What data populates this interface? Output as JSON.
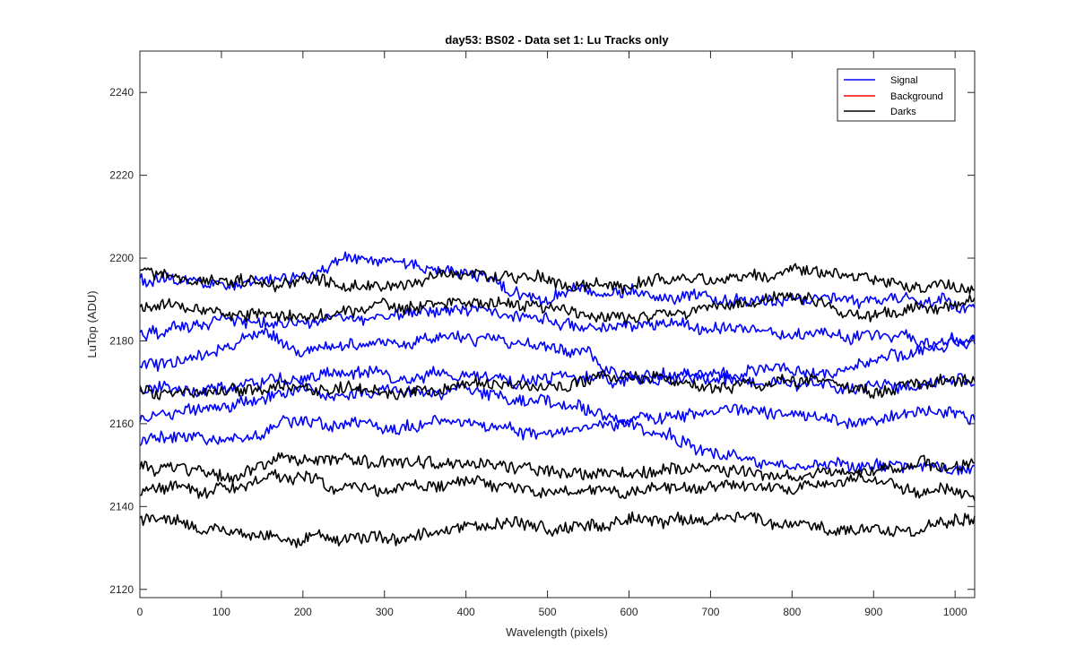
{
  "chart_data": {
    "type": "line",
    "title": "day53: BS02 - Data set 1: Lu Tracks only",
    "xlabel": "Wavelength (pixels)",
    "ylabel": "LuTop (ADU)",
    "xlim": [
      0,
      1024
    ],
    "ylim": [
      2118,
      2250
    ],
    "xticks": [
      0,
      100,
      200,
      300,
      400,
      500,
      600,
      700,
      800,
      900,
      1000
    ],
    "yticks": [
      2120,
      2140,
      2160,
      2180,
      2200,
      2220,
      2240
    ],
    "grid": false,
    "legend": {
      "placement": "top-right",
      "entries": [
        {
          "label": "Signal",
          "color": "#0000ff"
        },
        {
          "label": "Background",
          "color": "#ff0000"
        },
        {
          "label": "Darks",
          "color": "#000000"
        }
      ]
    },
    "series": [
      {
        "name": "Signal",
        "color": "#0000ff",
        "x": [
          0,
          100,
          200,
          250,
          300,
          400,
          500,
          600,
          700,
          800,
          900,
          1024
        ],
        "values": [
          2195,
          2193,
          2196,
          2200,
          2199,
          2196,
          2190,
          2193,
          2192,
          2191,
          2189,
          2188
        ]
      },
      {
        "name": "Signal",
        "color": "#0000ff",
        "x": [
          0,
          100,
          200,
          300,
          400,
          500,
          600,
          700,
          800,
          900,
          1024
        ],
        "values": [
          2182,
          2184,
          2185,
          2187,
          2188,
          2186,
          2184,
          2183,
          2182,
          2181,
          2180
        ]
      },
      {
        "name": "Signal",
        "color": "#0000ff",
        "x": [
          0,
          100,
          150,
          200,
          300,
          400,
          500,
          600,
          700,
          800,
          900,
          1024
        ],
        "values": [
          2174,
          2176,
          2182,
          2177,
          2180,
          2180,
          2178,
          2171,
          2172,
          2172,
          2175,
          2180
        ]
      },
      {
        "name": "Signal",
        "color": "#0000ff",
        "x": [
          0,
          100,
          200,
          300,
          400,
          500,
          600,
          700,
          800,
          900,
          1024
        ],
        "values": [
          2161,
          2164,
          2168,
          2168,
          2168,
          2164,
          2161,
          2163,
          2162,
          2160,
          2162
        ]
      },
      {
        "name": "Signal",
        "color": "#0000ff",
        "x": [
          0,
          100,
          200,
          300,
          400,
          500,
          600,
          700,
          800,
          900,
          1024
        ],
        "values": [
          2155,
          2157,
          2161,
          2159,
          2159,
          2157,
          2159,
          2153,
          2150,
          2151,
          2150
        ]
      },
      {
        "name": "Signal",
        "color": "#0000ff",
        "x": [
          0,
          100,
          200,
          300,
          400,
          500,
          600,
          700,
          800,
          900,
          1024
        ],
        "values": [
          2168,
          2169,
          2170,
          2171,
          2172,
          2171,
          2170,
          2171,
          2170,
          2169,
          2170
        ]
      },
      {
        "name": "Darks",
        "color": "#000000",
        "x": [
          0,
          100,
          200,
          300,
          400,
          500,
          600,
          700,
          800,
          900,
          1024
        ],
        "values": [
          2197,
          2195,
          2194,
          2193,
          2196,
          2194,
          2193,
          2195,
          2197,
          2195,
          2194
        ]
      },
      {
        "name": "Darks",
        "color": "#000000",
        "x": [
          0,
          100,
          200,
          300,
          400,
          500,
          600,
          700,
          800,
          900,
          1024
        ],
        "values": [
          2188,
          2187,
          2186,
          2188,
          2189,
          2188,
          2186,
          2188,
          2190,
          2187,
          2190
        ]
      },
      {
        "name": "Darks",
        "color": "#000000",
        "x": [
          0,
          100,
          200,
          300,
          400,
          500,
          600,
          700,
          800,
          900,
          1024
        ],
        "values": [
          2169,
          2167,
          2168,
          2169,
          2171,
          2170,
          2172,
          2170,
          2171,
          2168,
          2171
        ]
      },
      {
        "name": "Darks",
        "color": "#000000",
        "x": [
          0,
          100,
          200,
          300,
          400,
          500,
          600,
          700,
          800,
          900,
          1024
        ],
        "values": [
          2150,
          2148,
          2152,
          2150,
          2151,
          2148,
          2147,
          2149,
          2149,
          2150,
          2150
        ]
      },
      {
        "name": "Darks",
        "color": "#000000",
        "x": [
          0,
          100,
          200,
          300,
          400,
          500,
          600,
          700,
          800,
          900,
          1024
        ],
        "values": [
          2144,
          2145,
          2146,
          2145,
          2146,
          2144,
          2145,
          2145,
          2144,
          2146,
          2144
        ]
      },
      {
        "name": "Darks",
        "color": "#000000",
        "x": [
          0,
          100,
          200,
          300,
          400,
          500,
          600,
          700,
          800,
          900,
          1024
        ],
        "values": [
          2137,
          2135,
          2134,
          2132,
          2135,
          2134,
          2135,
          2136,
          2135,
          2136,
          2137
        ]
      }
    ]
  }
}
